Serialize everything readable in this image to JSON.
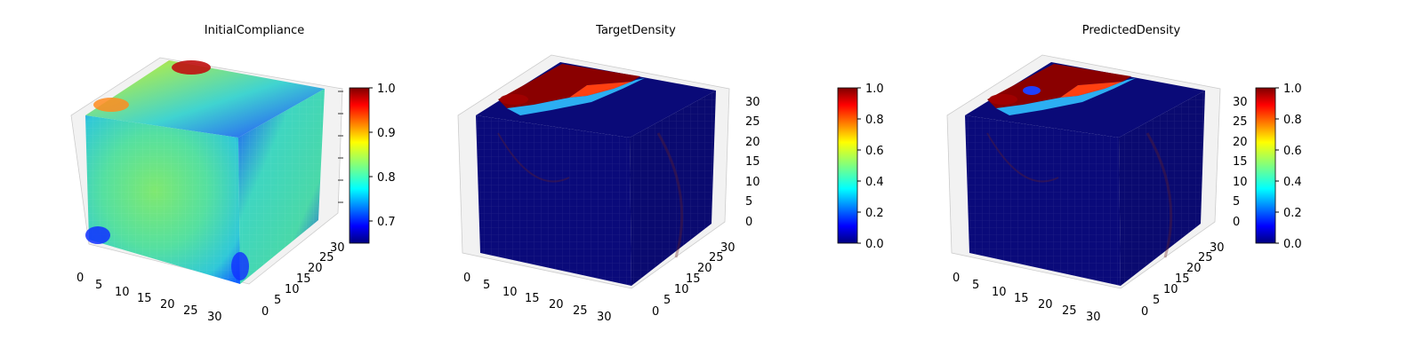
{
  "chart_data": [
    {
      "type": "heatmap",
      "title": "InitialCompliance",
      "x_ticks": [
        "0",
        "5",
        "10",
        "15",
        "20",
        "25",
        "30"
      ],
      "y_ticks": [
        "0",
        "5",
        "10",
        "15",
        "20",
        "25",
        "30"
      ],
      "z_ticks": [],
      "colorbar": {
        "ticks": [
          "0.7",
          "0.8",
          "0.9",
          "1.0"
        ],
        "range": [
          0.65,
          1.0
        ]
      },
      "colormap": "jet"
    },
    {
      "type": "heatmap",
      "title": "TargetDensity",
      "x_ticks": [
        "0",
        "5",
        "10",
        "15",
        "20",
        "25",
        "30"
      ],
      "y_ticks": [
        "0",
        "5",
        "10",
        "15",
        "20",
        "25",
        "30"
      ],
      "z_ticks": [
        "0",
        "5",
        "10",
        "15",
        "20",
        "25",
        "30"
      ],
      "colorbar": {
        "ticks": [
          "0.0",
          "0.2",
          "0.4",
          "0.6",
          "0.8",
          "1.0"
        ],
        "range": [
          0.0,
          1.0
        ]
      },
      "colormap": "jet"
    },
    {
      "type": "heatmap",
      "title": "PredictedDensity",
      "x_ticks": [
        "0",
        "5",
        "10",
        "15",
        "20",
        "25",
        "30"
      ],
      "y_ticks": [
        "0",
        "5",
        "10",
        "15",
        "20",
        "25",
        "30"
      ],
      "z_ticks": [
        "0",
        "5",
        "10",
        "15",
        "20",
        "25",
        "30"
      ],
      "colorbar": {
        "ticks": [
          "0.0",
          "0.2",
          "0.4",
          "0.6",
          "0.8",
          "1.0"
        ],
        "range": [
          0.0,
          1.0
        ]
      },
      "colormap": "jet"
    }
  ],
  "colors": {
    "jet_stops": [
      "#00007f",
      "#0000ff",
      "#00ffff",
      "#ffff00",
      "#ff0000",
      "#7f0000"
    ],
    "dark_navy": "#0a0a78",
    "grid_pane": "#f2f2f2"
  }
}
